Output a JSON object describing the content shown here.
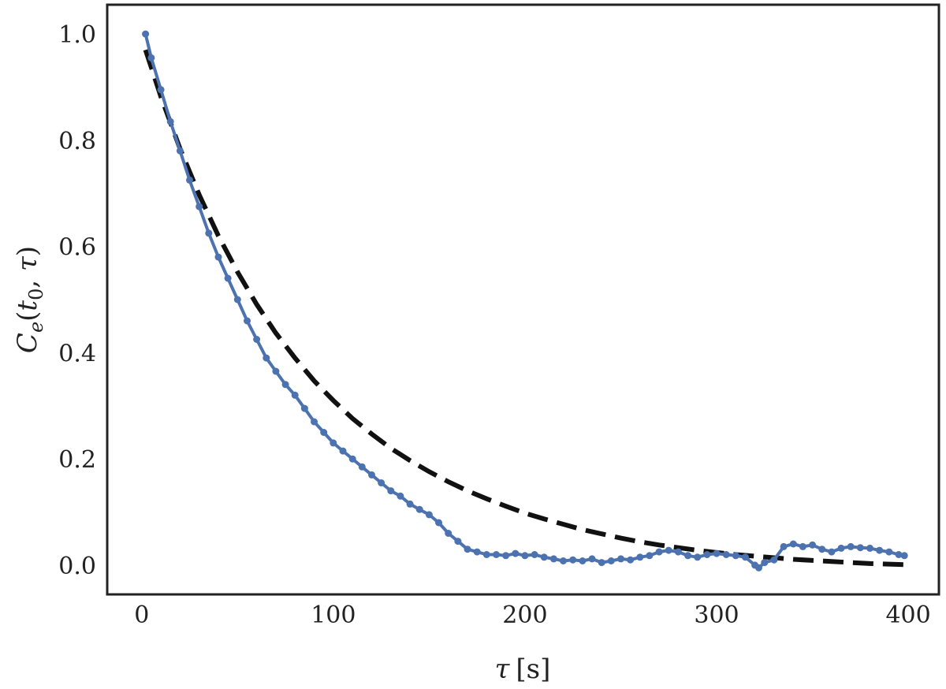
{
  "chart_data": {
    "type": "line",
    "title": "",
    "xlabel": {
      "symbol": "τ",
      "unit": "[s]"
    },
    "ylabel": {
      "base": "C",
      "sub1": "e",
      "open": "(",
      "t": "t",
      "sub2": "0",
      "sep": ", ",
      "tau": "τ",
      "close": ")"
    },
    "xlim": [
      -18,
      416
    ],
    "ylim": [
      -0.055,
      1.055
    ],
    "xticks": [
      0,
      100,
      200,
      300,
      400
    ],
    "yticks": [
      0.0,
      0.2,
      0.4,
      0.6,
      0.8,
      1.0
    ],
    "xtick_labels": [
      "0",
      "100",
      "200",
      "300",
      "400"
    ],
    "ytick_labels": [
      "0.0",
      "0.2",
      "0.4",
      "0.6",
      "0.8",
      "1.0"
    ],
    "grid": false,
    "legend": "none",
    "colors": {
      "data": "#4c72b0",
      "fit": "#111111"
    },
    "series": [
      {
        "style": "line-markers",
        "x": [
          2,
          5,
          10,
          15,
          20,
          25,
          30,
          35,
          40,
          45,
          50,
          55,
          60,
          65,
          70,
          75,
          80,
          85,
          90,
          95,
          100,
          105,
          110,
          115,
          120,
          125,
          130,
          135,
          140,
          145,
          150,
          155,
          160,
          165,
          170,
          175,
          180,
          185,
          190,
          195,
          200,
          205,
          210,
          215,
          220,
          225,
          230,
          235,
          240,
          245,
          250,
          255,
          260,
          265,
          270,
          275,
          280,
          285,
          290,
          295,
          300,
          305,
          310,
          315,
          320,
          322,
          325,
          330,
          335,
          340,
          345,
          350,
          355,
          360,
          365,
          370,
          375,
          380,
          385,
          390,
          395,
          398
        ],
        "y": [
          1.0,
          0.955,
          0.895,
          0.835,
          0.78,
          0.725,
          0.675,
          0.625,
          0.58,
          0.54,
          0.5,
          0.46,
          0.425,
          0.39,
          0.365,
          0.34,
          0.32,
          0.295,
          0.27,
          0.25,
          0.23,
          0.215,
          0.2,
          0.185,
          0.17,
          0.155,
          0.14,
          0.13,
          0.115,
          0.105,
          0.095,
          0.08,
          0.06,
          0.045,
          0.03,
          0.025,
          0.02,
          0.02,
          0.018,
          0.022,
          0.018,
          0.02,
          0.015,
          0.012,
          0.008,
          0.01,
          0.008,
          0.012,
          0.005,
          0.008,
          0.012,
          0.01,
          0.015,
          0.018,
          0.025,
          0.028,
          0.025,
          0.018,
          0.015,
          0.02,
          0.022,
          0.02,
          0.018,
          0.015,
          0.0,
          -0.005,
          0.005,
          0.01,
          0.035,
          0.04,
          0.035,
          0.038,
          0.03,
          0.025,
          0.032,
          0.035,
          0.033,
          0.032,
          0.028,
          0.025,
          0.02,
          0.018
        ]
      },
      {
        "style": "dashed",
        "x": [
          2,
          10,
          20,
          30,
          40,
          50,
          60,
          70,
          80,
          90,
          100,
          110,
          120,
          130,
          140,
          150,
          160,
          170,
          180,
          190,
          200,
          210,
          220,
          230,
          240,
          250,
          260,
          270,
          280,
          290,
          300,
          310,
          320,
          330,
          340,
          350,
          360,
          370,
          380,
          390,
          398
        ],
        "y": [
          0.97,
          0.882,
          0.784,
          0.697,
          0.62,
          0.552,
          0.491,
          0.437,
          0.39,
          0.347,
          0.31,
          0.276,
          0.247,
          0.22,
          0.197,
          0.176,
          0.157,
          0.14,
          0.125,
          0.111,
          0.098,
          0.087,
          0.077,
          0.067,
          0.059,
          0.051,
          0.044,
          0.038,
          0.033,
          0.028,
          0.024,
          0.02,
          0.017,
          0.014,
          0.011,
          0.009,
          0.007,
          0.005,
          0.003,
          0.002,
          0.001
        ]
      }
    ]
  }
}
